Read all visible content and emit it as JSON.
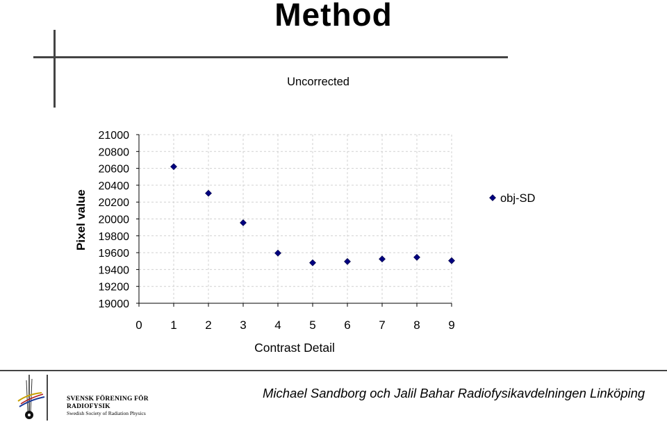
{
  "slide": {
    "title": "Method",
    "footer_author": "Michael Sandborg och Jalil Bahar Radiofysikavdelningen Linköping"
  },
  "logo": {
    "line1": "SVENSK FÖRENING FÖR",
    "line2": "RADIOFYSIK",
    "line3": "Swedish Society of Radiation Physics"
  },
  "chart_data": {
    "type": "scatter",
    "title": "Uncorrected",
    "xlabel": "Contrast Detail",
    "ylabel": "Pixel value",
    "xlim": [
      0,
      9
    ],
    "ylim": [
      19000,
      21000
    ],
    "x_ticks": [
      "0",
      "1",
      "2",
      "3",
      "4",
      "5",
      "6",
      "7",
      "8",
      "9"
    ],
    "y_ticks": [
      "21000",
      "20800",
      "20600",
      "20400",
      "20200",
      "20000",
      "19800",
      "19600",
      "19400",
      "19200",
      "19000"
    ],
    "grid": true,
    "legend_position": "right",
    "series": [
      {
        "name": "obj-SD",
        "color": "#000080",
        "marker": "diamond",
        "x": [
          1,
          2,
          3,
          4,
          5,
          6,
          7,
          8,
          9
        ],
        "y": [
          20620,
          20305,
          19955,
          19595,
          19480,
          19495,
          19525,
          19545,
          19505
        ]
      }
    ]
  }
}
